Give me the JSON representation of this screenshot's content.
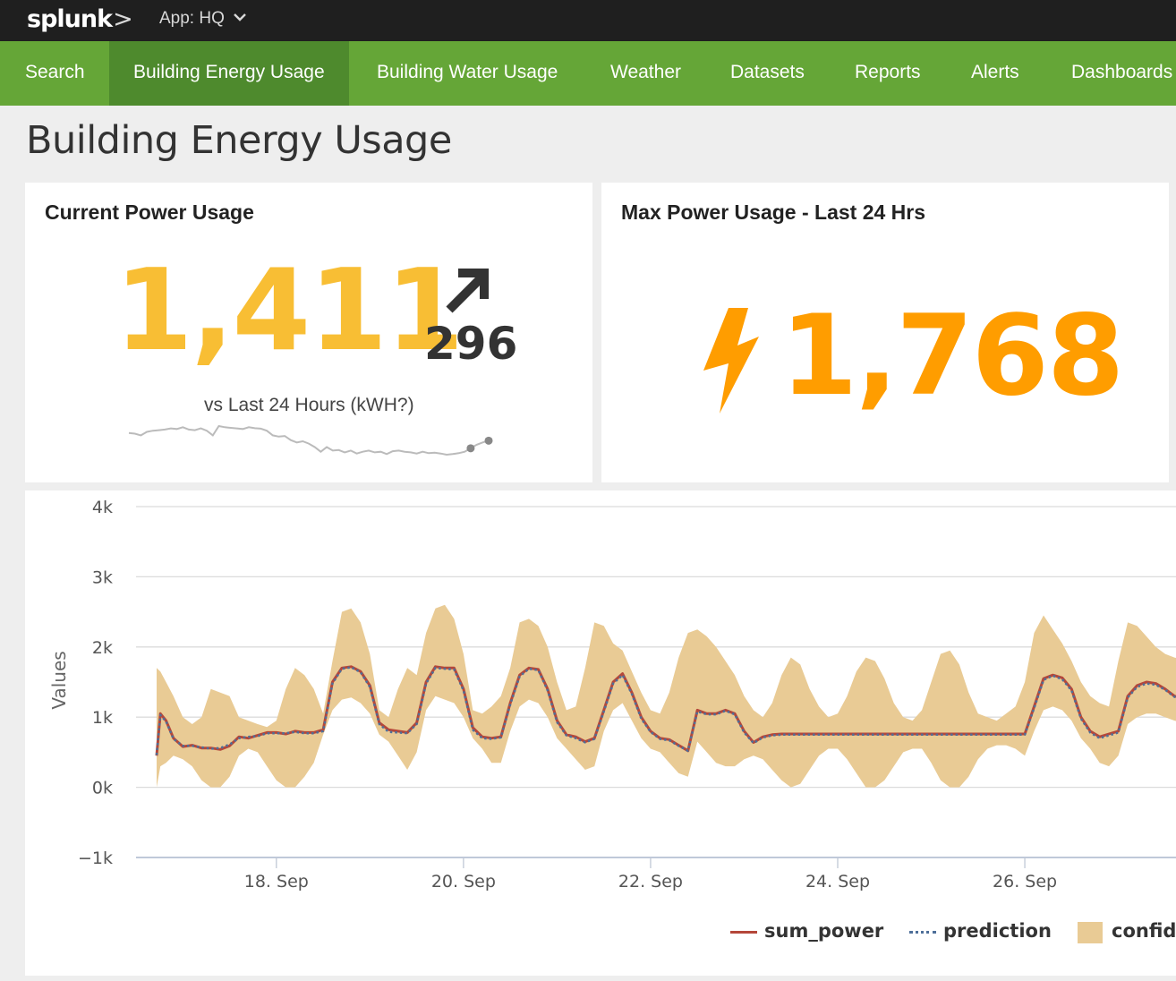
{
  "topbar": {
    "logo": "splunk",
    "logo_chevron": ">",
    "app_label": "App: HQ",
    "app_chevron": "⌄"
  },
  "nav": [
    {
      "label": "Search",
      "active": false
    },
    {
      "label": "Building Energy Usage",
      "active": true
    },
    {
      "label": "Building Water Usage",
      "active": false
    },
    {
      "label": "Weather",
      "active": false
    },
    {
      "label": "Datasets",
      "active": false
    },
    {
      "label": "Reports",
      "active": false
    },
    {
      "label": "Alerts",
      "active": false
    },
    {
      "label": "Dashboards",
      "active": false
    }
  ],
  "page": {
    "title": "Building Energy Usage"
  },
  "panels": {
    "current": {
      "title": "Current Power Usage",
      "value": "1,411",
      "delta": "296",
      "delta_direction": "up",
      "delta_icon": "arrow-up-right-icon",
      "comparison_label": "vs Last 24 Hours (kWH?)",
      "value_color": "#f8be34",
      "sparkline_color": "#bbbbbb",
      "sparkline_values": [
        720,
        715,
        700,
        730,
        740,
        745,
        750,
        760,
        755,
        770,
        750,
        745,
        760,
        740,
        700,
        780,
        770,
        765,
        760,
        755,
        770,
        762,
        758,
        740,
        700,
        690,
        695,
        660,
        640,
        650,
        630,
        600,
        560,
        600,
        570,
        575,
        555,
        570,
        545,
        560,
        570,
        555,
        560,
        540,
        565,
        570,
        560,
        555,
        545,
        560,
        548,
        552,
        545,
        535,
        540,
        548,
        560,
        590,
        620,
        640,
        655
      ]
    },
    "max": {
      "title": "Max Power Usage - Last 24 Hrs",
      "value": "1,768",
      "icon": "lightning-bolt-icon",
      "value_color": "#ff9d00"
    }
  },
  "chart_data": {
    "type": "line",
    "title": "",
    "xlabel": "",
    "ylabel": "Values",
    "ylim": [
      -1000,
      4000
    ],
    "yticks": [
      {
        "value": 4000,
        "label": "4k"
      },
      {
        "value": 3000,
        "label": "3k"
      },
      {
        "value": 2000,
        "label": "2k"
      },
      {
        "value": 1000,
        "label": "1k"
      },
      {
        "value": 0,
        "label": "0k"
      },
      {
        "value": -1000,
        "label": "−1k"
      }
    ],
    "x_unit": "day of September",
    "xlim": [
      16.5,
      27.75
    ],
    "xticks": [
      {
        "value": 18,
        "label": "18. Sep"
      },
      {
        "value": 20,
        "label": "20. Sep"
      },
      {
        "value": 22,
        "label": "22. Sep"
      },
      {
        "value": 24,
        "label": "24. Sep"
      },
      {
        "value": 26,
        "label": "26. Sep"
      }
    ],
    "grid": true,
    "legend_position": "bottom",
    "series": [
      {
        "name": "sum_power",
        "style": "solid",
        "color": "#b5473a",
        "x": [
          16.72,
          16.76,
          16.82,
          16.9,
          17.0,
          17.1,
          17.2,
          17.3,
          17.4,
          17.5,
          17.6,
          17.7,
          17.8,
          17.9,
          18.0,
          18.1,
          18.2,
          18.3,
          18.4,
          18.5,
          18.6,
          18.7,
          18.8,
          18.9,
          19.0,
          19.1,
          19.2,
          19.3,
          19.4,
          19.5,
          19.6,
          19.7,
          19.8,
          19.9,
          20.0,
          20.1,
          20.2,
          20.3,
          20.4,
          20.5,
          20.6,
          20.7,
          20.8,
          20.9,
          21.0,
          21.1,
          21.2,
          21.3,
          21.4,
          21.5,
          21.6,
          21.7,
          21.8,
          21.9,
          22.0,
          22.1,
          22.2,
          22.3,
          22.4,
          22.5,
          22.6,
          22.7,
          22.8,
          22.9,
          23.0,
          23.1,
          23.2,
          23.3,
          23.4,
          23.5,
          23.6,
          23.7,
          23.8,
          23.9,
          24.0,
          24.1,
          24.2,
          24.3,
          24.4,
          24.5,
          24.6,
          24.7,
          24.8,
          24.9,
          25.0,
          25.1,
          25.2,
          25.3,
          25.4,
          25.5,
          25.6,
          25.7,
          25.8,
          25.9,
          26.0,
          26.1,
          26.2,
          26.3,
          26.4,
          26.5,
          26.6,
          26.7,
          26.8,
          26.9,
          27.0,
          27.1,
          27.2,
          27.3,
          27.4,
          27.5,
          27.6,
          27.75
        ],
        "y": [
          450,
          1050,
          950,
          700,
          580,
          600,
          560,
          560,
          540,
          590,
          720,
          700,
          740,
          780,
          780,
          760,
          800,
          780,
          780,
          820,
          1500,
          1700,
          1720,
          1650,
          1450,
          920,
          820,
          800,
          780,
          920,
          1500,
          1720,
          1700,
          1700,
          1400,
          850,
          720,
          700,
          720,
          1200,
          1600,
          1700,
          1680,
          1400,
          950,
          750,
          720,
          650,
          700,
          1100,
          1500,
          1620,
          1350,
          1000,
          800,
          700,
          680,
          600,
          520,
          1100,
          1050,
          1050,
          1100,
          1050,
          800,
          640,
          720,
          750,
          760,
          760,
          760,
          760,
          760,
          760,
          760,
          760,
          760,
          760,
          760,
          760,
          760,
          760,
          760,
          760,
          760,
          760,
          760,
          760,
          760,
          760,
          760,
          760,
          760,
          760,
          760,
          1150,
          1550,
          1600,
          1560,
          1400,
          1000,
          800,
          720,
          760,
          800,
          1300,
          1450,
          1500,
          1480,
          1400,
          1300,
          1250
        ]
      },
      {
        "name": "prediction",
        "style": "dotted",
        "color": "#4e6f99",
        "x": [
          16.72,
          16.76,
          16.82,
          16.9,
          17.0,
          17.1,
          17.2,
          17.3,
          17.4,
          17.5,
          17.6,
          17.7,
          17.8,
          17.9,
          18.0,
          18.1,
          18.2,
          18.3,
          18.4,
          18.5,
          18.6,
          18.7,
          18.8,
          18.9,
          19.0,
          19.1,
          19.2,
          19.3,
          19.4,
          19.5,
          19.6,
          19.7,
          19.8,
          19.9,
          20.0,
          20.1,
          20.2,
          20.3,
          20.4,
          20.5,
          20.6,
          20.7,
          20.8,
          20.9,
          21.0,
          21.1,
          21.2,
          21.3,
          21.4,
          21.5,
          21.6,
          21.7,
          21.8,
          21.9,
          22.0,
          22.1,
          22.2,
          22.3,
          22.4,
          22.5,
          22.6,
          22.7,
          22.8,
          22.9,
          23.0,
          23.1,
          23.2,
          23.3,
          23.4,
          23.5,
          23.6,
          23.7,
          23.8,
          23.9,
          24.0,
          24.1,
          24.2,
          24.3,
          24.4,
          24.5,
          24.6,
          24.7,
          24.8,
          24.9,
          25.0,
          25.1,
          25.2,
          25.3,
          25.4,
          25.5,
          25.6,
          25.7,
          25.8,
          25.9,
          26.0,
          26.1,
          26.2,
          26.3,
          26.4,
          26.5,
          26.6,
          26.7,
          26.8,
          26.9,
          27.0,
          27.1,
          27.2,
          27.3,
          27.4,
          27.5,
          27.6,
          27.75
        ],
        "y": [
          460,
          1030,
          940,
          690,
          590,
          590,
          570,
          550,
          560,
          610,
          700,
          720,
          730,
          770,
          770,
          770,
          790,
          770,
          770,
          800,
          1480,
          1690,
          1710,
          1640,
          1430,
          900,
          790,
          780,
          770,
          900,
          1480,
          1700,
          1690,
          1680,
          1380,
          820,
          700,
          690,
          710,
          1180,
          1580,
          1690,
          1670,
          1380,
          930,
          740,
          700,
          640,
          690,
          1080,
          1480,
          1600,
          1330,
          980,
          790,
          690,
          670,
          590,
          520,
          1080,
          1040,
          1040,
          1090,
          1040,
          780,
          630,
          710,
          740,
          750,
          750,
          750,
          750,
          750,
          750,
          750,
          750,
          750,
          750,
          750,
          750,
          750,
          750,
          750,
          750,
          750,
          750,
          750,
          750,
          750,
          750,
          750,
          750,
          750,
          750,
          750,
          1130,
          1530,
          1590,
          1540,
          1380,
          980,
          780,
          700,
          740,
          780,
          1280,
          1430,
          1480,
          1460,
          1390,
          1290,
          1240
        ]
      },
      {
        "name": "confidence",
        "type": "area",
        "color": "#e9cb95",
        "x": [
          16.72,
          16.76,
          16.82,
          16.9,
          17.0,
          17.1,
          17.2,
          17.3,
          17.4,
          17.5,
          17.6,
          17.7,
          17.8,
          17.9,
          18.0,
          18.1,
          18.2,
          18.3,
          18.4,
          18.5,
          18.6,
          18.7,
          18.8,
          18.9,
          19.0,
          19.1,
          19.2,
          19.3,
          19.4,
          19.5,
          19.6,
          19.7,
          19.8,
          19.9,
          20.0,
          20.1,
          20.2,
          20.3,
          20.4,
          20.5,
          20.6,
          20.7,
          20.8,
          20.9,
          21.0,
          21.1,
          21.2,
          21.3,
          21.4,
          21.5,
          21.6,
          21.7,
          21.8,
          21.9,
          22.0,
          22.1,
          22.2,
          22.3,
          22.4,
          22.5,
          22.6,
          22.7,
          22.8,
          22.9,
          23.0,
          23.1,
          23.2,
          23.3,
          23.4,
          23.5,
          23.6,
          23.7,
          23.8,
          23.9,
          24.0,
          24.1,
          24.2,
          24.3,
          24.4,
          24.5,
          24.6,
          24.7,
          24.8,
          24.9,
          25.0,
          25.1,
          25.2,
          25.3,
          25.4,
          25.5,
          25.6,
          25.7,
          25.8,
          25.9,
          26.0,
          26.1,
          26.2,
          26.3,
          26.4,
          26.5,
          26.6,
          26.7,
          26.8,
          26.9,
          27.0,
          27.1,
          27.2,
          27.3,
          27.4,
          27.5,
          27.6,
          27.75
        ],
        "upper": [
          1700,
          1650,
          1500,
          1300,
          1000,
          900,
          1000,
          1400,
          1350,
          1300,
          1000,
          950,
          900,
          860,
          950,
          1400,
          1700,
          1600,
          1400,
          1050,
          1800,
          2500,
          2550,
          2350,
          1900,
          1100,
          1000,
          1400,
          1700,
          1600,
          2200,
          2550,
          2600,
          2400,
          1900,
          1100,
          1050,
          1150,
          1300,
          1700,
          2350,
          2400,
          2300,
          2000,
          1500,
          1100,
          1150,
          1700,
          2350,
          2300,
          2050,
          1950,
          1650,
          1350,
          1100,
          1050,
          1350,
          1850,
          2200,
          2250,
          2150,
          2000,
          1800,
          1600,
          1300,
          1100,
          1000,
          1200,
          1600,
          1850,
          1750,
          1400,
          1150,
          1000,
          1050,
          1300,
          1650,
          1850,
          1800,
          1550,
          1200,
          1000,
          950,
          1100,
          1500,
          1900,
          1950,
          1750,
          1350,
          1050,
          1000,
          950,
          1050,
          1150,
          1500,
          2200,
          2450,
          2250,
          2050,
          1800,
          1500,
          1300,
          1200,
          1150,
          1800,
          2350,
          2300,
          2150,
          2000,
          1900,
          1850,
          1800
        ],
        "lower": [
          0,
          300,
          350,
          450,
          400,
          300,
          100,
          0,
          0,
          150,
          450,
          550,
          500,
          300,
          100,
          0,
          0,
          150,
          350,
          750,
          1100,
          1250,
          1280,
          1200,
          1050,
          750,
          650,
          450,
          250,
          500,
          1100,
          1300,
          1250,
          1200,
          1000,
          700,
          550,
          350,
          350,
          800,
          1150,
          1250,
          1200,
          1000,
          700,
          550,
          400,
          250,
          300,
          800,
          1100,
          1200,
          950,
          700,
          550,
          500,
          350,
          200,
          150,
          650,
          500,
          350,
          300,
          300,
          400,
          450,
          400,
          250,
          100,
          0,
          50,
          250,
          450,
          550,
          550,
          400,
          200,
          0,
          0,
          100,
          300,
          500,
          550,
          550,
          350,
          100,
          0,
          0,
          150,
          400,
          550,
          600,
          600,
          550,
          450,
          800,
          1100,
          1150,
          1100,
          950,
          700,
          550,
          350,
          300,
          450,
          900,
          1000,
          1050,
          1050,
          1000,
          950,
          900
        ]
      }
    ],
    "legend": [
      {
        "label": "sum_power",
        "style": "solid",
        "color": "#b5473a"
      },
      {
        "label": "prediction",
        "style": "dotted",
        "color": "#4e6f99"
      },
      {
        "label": "confide",
        "style": "area",
        "color": "#e9cb95"
      }
    ]
  }
}
